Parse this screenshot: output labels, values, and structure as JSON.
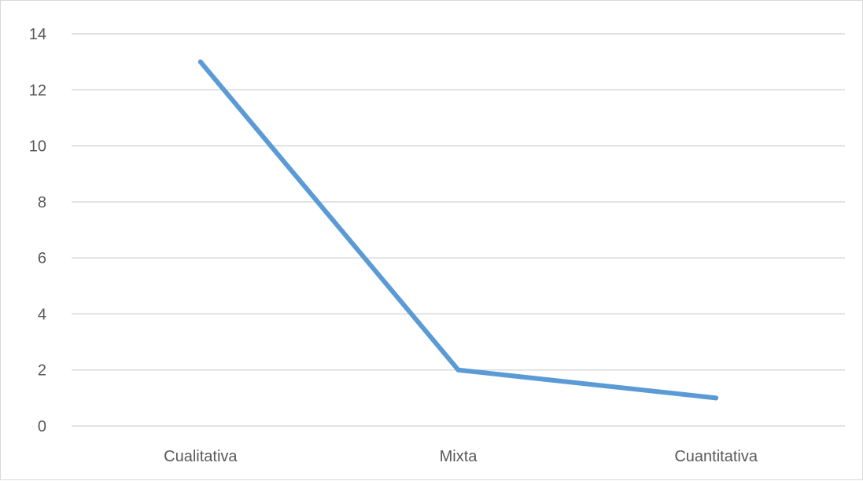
{
  "chart_data": {
    "type": "line",
    "title": "",
    "xlabel": "",
    "ylabel": "",
    "categories": [
      "Cualitativa",
      "Mixta",
      "Cuantitativa"
    ],
    "series": [
      {
        "values": [
          13,
          2,
          1
        ],
        "color": "#5B9BD5"
      }
    ],
    "ylim": [
      0,
      14
    ],
    "y_ticks": [
      "0",
      "2",
      "4",
      "6",
      "8",
      "10",
      "12",
      "14"
    ],
    "grid": true,
    "legend": "none"
  }
}
